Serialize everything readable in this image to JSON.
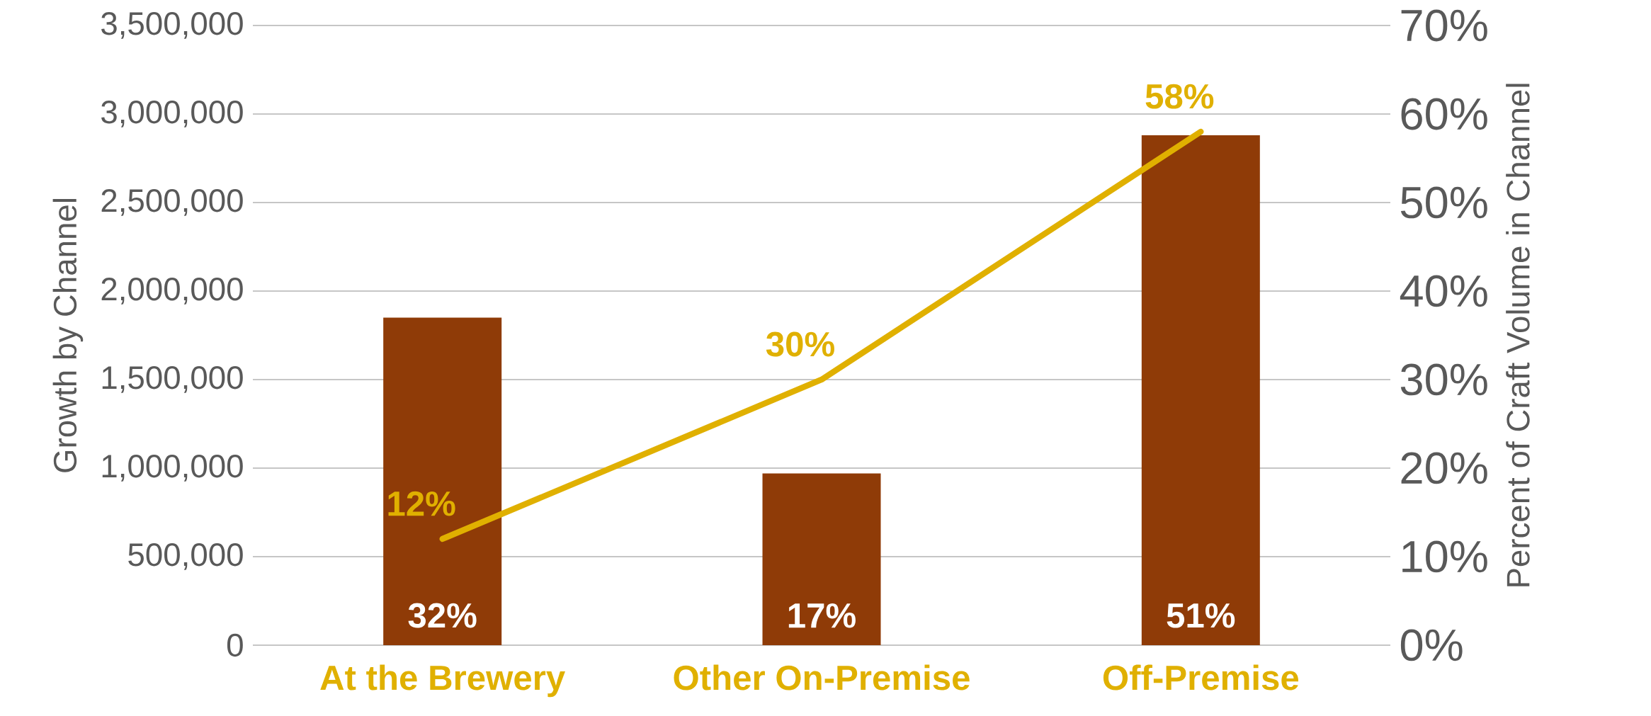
{
  "chart_data": {
    "type": "bar",
    "categories": [
      "At the Brewery",
      "Other On-Premise",
      "Off-Premise"
    ],
    "ylabel": "Growth by Channel",
    "y2label": "Percent of Craft Volume in Channel",
    "ylim": [
      0,
      3500000
    ],
    "yticks": [
      0,
      {
        "value": 500000,
        "label": "500,000"
      },
      {
        "value": 1000000,
        "label": "1,000,000"
      },
      {
        "value": 1500000,
        "label": "1,500,000"
      },
      {
        "value": 2000000,
        "label": "2,000,000"
      },
      {
        "value": 2500000,
        "label": "2,500,000"
      },
      {
        "value": 3000000,
        "label": "3,000,000"
      },
      {
        "value": 3500000,
        "label": "3,500,000"
      }
    ],
    "y2lim": [
      0,
      70
    ],
    "y2ticks": [
      {
        "value": 0,
        "label": "0%"
      },
      {
        "value": 10,
        "label": "10%"
      },
      {
        "value": 20,
        "label": "20%"
      },
      {
        "value": 30,
        "label": "30%"
      },
      {
        "value": 40,
        "label": "40%"
      },
      {
        "value": 50,
        "label": "50%"
      },
      {
        "value": 60,
        "label": "60%"
      },
      {
        "value": 70,
        "label": "70%"
      }
    ],
    "grid": "y",
    "annotations": [
      {
        "text": "32%",
        "x": "At the Brewery",
        "y": 0
      },
      {
        "text": "17%",
        "x": "Other On-Premise",
        "y": 0
      },
      {
        "text": "51%",
        "x": "Off-Premise",
        "y": 0
      }
    ],
    "series": [
      {
        "color": "#8f3b07",
        "values": [
          1850000,
          970000,
          2880000
        ]
      },
      {
        "type": "line",
        "axis": "y2",
        "color": "#e0b000",
        "values": [
          12,
          30,
          58
        ],
        "value_labels": [
          "12%",
          "30%",
          "58%"
        ]
      }
    ]
  }
}
